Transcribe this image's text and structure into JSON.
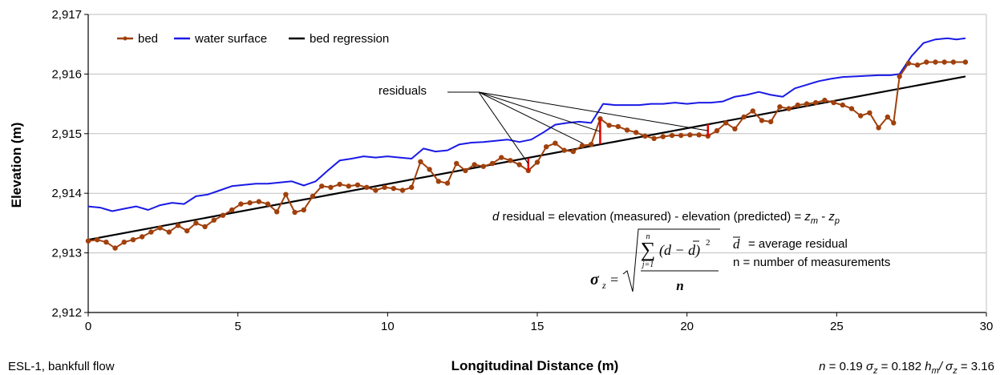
{
  "chart_data": {
    "type": "line",
    "xlabel": "Longitudinal Distance (m)",
    "ylabel": "Elevation (m)",
    "xlim": [
      0,
      30
    ],
    "ylim": [
      2912,
      2917
    ],
    "x_ticks": [
      "0",
      "5",
      "10",
      "15",
      "20",
      "25",
      "30"
    ],
    "y_ticks": [
      "2,912",
      "2,913",
      "2,914",
      "2,915",
      "2,916",
      "2,917"
    ],
    "grid": "horizontal",
    "legend_position": "top-left",
    "colors": {
      "bed": "#a0400c",
      "water_surface": "#1a1ae6",
      "regression": "#000000",
      "residual": "#e60000"
    },
    "series": [
      {
        "name": "bed",
        "x": [
          0,
          0.3,
          0.6,
          0.9,
          1.2,
          1.5,
          1.8,
          2.1,
          2.4,
          2.7,
          3.0,
          3.3,
          3.6,
          3.9,
          4.2,
          4.5,
          4.8,
          5.1,
          5.4,
          5.7,
          6.0,
          6.3,
          6.6,
          6.9,
          7.2,
          7.5,
          7.8,
          8.1,
          8.4,
          8.7,
          9.0,
          9.3,
          9.6,
          9.9,
          10.2,
          10.5,
          10.8,
          11.1,
          11.4,
          11.7,
          12.0,
          12.3,
          12.6,
          12.9,
          13.2,
          13.5,
          13.8,
          14.1,
          14.4,
          14.7,
          15.0,
          15.3,
          15.6,
          15.9,
          16.2,
          16.5,
          16.8,
          17.1,
          17.4,
          17.7,
          18.0,
          18.3,
          18.6,
          18.9,
          19.2,
          19.5,
          19.8,
          20.1,
          20.4,
          20.7,
          21.0,
          21.3,
          21.6,
          21.9,
          22.2,
          22.5,
          22.8,
          23.1,
          23.4,
          23.7,
          24.0,
          24.3,
          24.6,
          24.9,
          25.2,
          25.5,
          25.8,
          26.1,
          26.4,
          26.7,
          26.9,
          27.1,
          27.4,
          27.7,
          28.0,
          28.3,
          28.6,
          28.9,
          29.3
        ],
        "y": [
          2913.2,
          2913.22,
          2913.18,
          2913.08,
          2913.18,
          2913.22,
          2913.27,
          2913.35,
          2913.42,
          2913.35,
          2913.46,
          2913.37,
          2913.5,
          2913.44,
          2913.55,
          2913.63,
          2913.72,
          2913.82,
          2913.84,
          2913.86,
          2913.82,
          2913.69,
          2913.98,
          2913.68,
          2913.72,
          2913.95,
          2914.12,
          2914.1,
          2914.15,
          2914.12,
          2914.14,
          2914.1,
          2914.05,
          2914.1,
          2914.08,
          2914.05,
          2914.1,
          2914.53,
          2914.4,
          2914.2,
          2914.17,
          2914.5,
          2914.38,
          2914.48,
          2914.45,
          2914.5,
          2914.6,
          2914.55,
          2914.48,
          2914.38,
          2914.52,
          2914.78,
          2914.84,
          2914.72,
          2914.7,
          2914.8,
          2914.82,
          2915.25,
          2915.14,
          2915.12,
          2915.06,
          2915.02,
          2914.96,
          2914.92,
          2914.95,
          2914.97,
          2914.97,
          2914.98,
          2914.98,
          2914.96,
          2915.05,
          2915.18,
          2915.08,
          2915.28,
          2915.38,
          2915.22,
          2915.2,
          2915.45,
          2915.42,
          2915.48,
          2915.5,
          2915.52,
          2915.56,
          2915.52,
          2915.48,
          2915.42,
          2915.3,
          2915.35,
          2915.1,
          2915.28,
          2915.18,
          2915.96,
          2916.18,
          2916.15,
          2916.2,
          2916.2,
          2916.2,
          2916.2,
          2916.2
        ]
      },
      {
        "name": "water surface",
        "x": [
          0,
          0.4,
          0.8,
          1.2,
          1.6,
          2.0,
          2.4,
          2.8,
          3.2,
          3.6,
          4.0,
          4.4,
          4.8,
          5.2,
          5.6,
          6.0,
          6.4,
          6.8,
          7.2,
          7.6,
          8.0,
          8.4,
          8.8,
          9.2,
          9.6,
          10.0,
          10.4,
          10.8,
          11.2,
          11.6,
          12.0,
          12.4,
          12.8,
          13.2,
          13.6,
          14.0,
          14.4,
          14.8,
          15.2,
          15.6,
          16.0,
          16.4,
          16.8,
          17.2,
          17.6,
          18.0,
          18.4,
          18.8,
          19.2,
          19.6,
          20.0,
          20.4,
          20.8,
          21.2,
          21.6,
          22.0,
          22.4,
          22.8,
          23.2,
          23.6,
          24.0,
          24.4,
          24.8,
          25.2,
          25.6,
          26.0,
          26.4,
          26.8,
          27.1,
          27.5,
          27.9,
          28.3,
          28.7,
          29.0,
          29.3
        ],
        "y": [
          2913.78,
          2913.76,
          2913.7,
          2913.74,
          2913.78,
          2913.72,
          2913.8,
          2913.84,
          2913.82,
          2913.95,
          2913.98,
          2914.05,
          2914.12,
          2914.14,
          2914.16,
          2914.16,
          2914.18,
          2914.2,
          2914.13,
          2914.2,
          2914.38,
          2914.55,
          2914.58,
          2914.62,
          2914.6,
          2914.62,
          2914.6,
          2914.58,
          2914.75,
          2914.7,
          2914.72,
          2914.82,
          2914.85,
          2914.86,
          2914.88,
          2914.9,
          2914.86,
          2914.9,
          2915.02,
          2915.15,
          2915.18,
          2915.2,
          2915.18,
          2915.5,
          2915.48,
          2915.48,
          2915.48,
          2915.5,
          2915.5,
          2915.52,
          2915.5,
          2915.52,
          2915.52,
          2915.54,
          2915.62,
          2915.65,
          2915.7,
          2915.65,
          2915.62,
          2915.76,
          2915.82,
          2915.88,
          2915.92,
          2915.95,
          2915.96,
          2915.97,
          2915.98,
          2915.98,
          2916.0,
          2916.3,
          2916.52,
          2916.58,
          2916.6,
          2916.58,
          2916.6
        ]
      },
      {
        "name": "bed regression",
        "x": [
          0,
          29.3
        ],
        "y": [
          2913.22,
          2915.96
        ]
      }
    ],
    "residuals": [
      {
        "x": 14.7,
        "y_bed": 2914.38,
        "y_reg": 2914.59
      },
      {
        "x": 17.1,
        "y_bed": 2915.25,
        "y_reg": 2914.82
      },
      {
        "x": 20.7,
        "y_bed": 2914.96,
        "y_reg": 2915.16
      }
    ],
    "annotations": {
      "residuals_label": "residuals",
      "formula_d": "residual = elevation (measured) - elevation (predicted) = ",
      "d_sym": "d",
      "dbar_def": "= average residual",
      "n_def": "n  = number of measurements",
      "sigma_sym": "σ",
      "sigma_sub": "z",
      "sum_upper": "n",
      "sum_lower": "j=1",
      "numerator": "(d − d)",
      "numerator_exp": "2",
      "denominator": "n",
      "zm": "z",
      "zm_sub": "m",
      "zp": "z",
      "zp_sub": "p",
      "minus": " - "
    },
    "footer": {
      "site": "ESL-1, bankfull flow",
      "n_label": "n",
      "n_value": " = 0.19",
      "sigma_label": "σ",
      "sigma_sub": "z",
      "sigma_value": " = 0.182",
      "h_label": "h",
      "h_sub": "m",
      "h_sep": "/ σ",
      "h_sep_sub": "z",
      "h_value": " = 3.16"
    }
  }
}
